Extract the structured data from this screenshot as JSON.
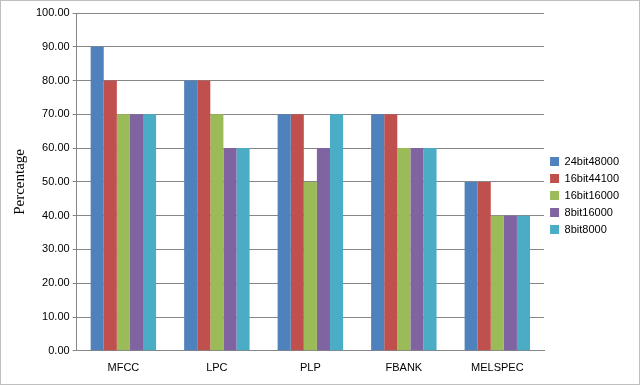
{
  "chart_data": {
    "type": "bar",
    "y_label": "Percentage",
    "categories": [
      "MFCC",
      "LPC",
      "PLP",
      "FBANK",
      "MELSPEC"
    ],
    "series": [
      {
        "name": "24bit48000",
        "color": "#4f81bd",
        "values": [
          90,
          80,
          70,
          70,
          50
        ]
      },
      {
        "name": "16bit44100",
        "color": "#c0504d",
        "values": [
          80,
          80,
          70,
          70,
          50
        ]
      },
      {
        "name": "16bit16000",
        "color": "#9bbb59",
        "values": [
          70,
          70,
          50,
          60,
          40
        ]
      },
      {
        "name": "8bit16000",
        "color": "#8064a2",
        "values": [
          70,
          60,
          60,
          60,
          40
        ]
      },
      {
        "name": "8bit8000",
        "color": "#4bacc6",
        "values": [
          70,
          60,
          70,
          60,
          40
        ]
      }
    ],
    "ylim": [
      0,
      100
    ],
    "yticks": [
      {
        "value": 0,
        "label": "0.00"
      },
      {
        "value": 10,
        "label": "10.00"
      },
      {
        "value": 20,
        "label": "20.00"
      },
      {
        "value": 30,
        "label": "30.00"
      },
      {
        "value": 40,
        "label": "40.00"
      },
      {
        "value": 50,
        "label": "50.00"
      },
      {
        "value": 60,
        "label": "60.00"
      },
      {
        "value": 70,
        "label": "70.00"
      },
      {
        "value": 80,
        "label": "80.00"
      },
      {
        "value": 90,
        "label": "90.00"
      },
      {
        "value": 100,
        "label": "100.00"
      }
    ],
    "grid": true,
    "legend": "right"
  }
}
